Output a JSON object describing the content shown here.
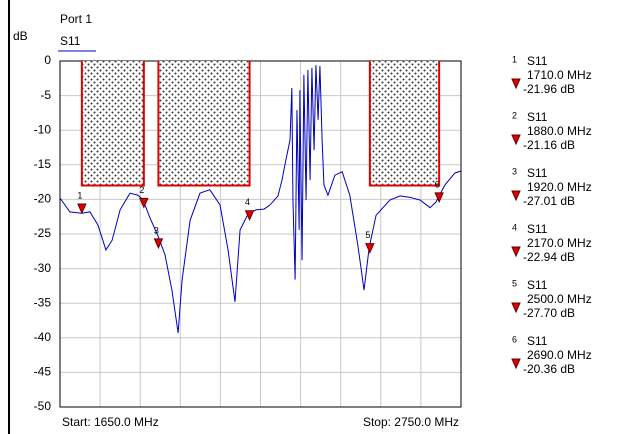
{
  "chart_data": {
    "type": "line",
    "title": "Port 1",
    "ylabel": "dB",
    "start_label": "Start: 1650.0 MHz",
    "stop_label": "Stop: 2750.0 MHz",
    "xlim": [
      1650,
      2750
    ],
    "ylim": [
      -50,
      0
    ],
    "yticks": [
      0,
      -5,
      -10,
      -15,
      -20,
      -25,
      -30,
      -35,
      -40,
      -45,
      -50
    ],
    "xticks": [
      1650,
      1760,
      1870,
      1980,
      2090,
      2200,
      2310,
      2420,
      2530,
      2640,
      2750
    ],
    "grid": true,
    "series": [
      {
        "name": "S11",
        "color": "#0000c0",
        "x": [
          1650,
          1677,
          1710,
          1732,
          1754,
          1776,
          1793,
          1815,
          1842,
          1864,
          1878,
          1897,
          1919,
          1938,
          1957,
          1974,
          1985,
          2007,
          2034,
          2061,
          2089,
          2111,
          2130,
          2144,
          2166,
          2188,
          2210,
          2226,
          2248,
          2259,
          2267,
          2281,
          2286,
          2289,
          2295,
          2300,
          2306,
          2308,
          2314,
          2319,
          2325,
          2330,
          2336,
          2341,
          2347,
          2352,
          2358,
          2363,
          2369,
          2374,
          2385,
          2404,
          2424,
          2445,
          2467,
          2484,
          2498,
          2517,
          2555,
          2583,
          2610,
          2638,
          2665,
          2681,
          2706,
          2733,
          2750
        ],
        "values": [
          -19.8,
          -21.8,
          -22.0,
          -21.8,
          -23.7,
          -27.3,
          -25.9,
          -21.5,
          -19.1,
          -19.4,
          -20.1,
          -22.7,
          -25.3,
          -28.0,
          -33.1,
          -39.3,
          -31.6,
          -23.0,
          -19.1,
          -18.6,
          -20.8,
          -27.3,
          -34.8,
          -24.4,
          -22.1,
          -21.5,
          -21.4,
          -20.8,
          -19.5,
          -17.2,
          -15.0,
          -11.4,
          -3.9,
          -20.1,
          -31.6,
          -7.1,
          -24.4,
          -4.2,
          -28.8,
          -2.0,
          -20.1,
          -1.3,
          -17.2,
          -1.0,
          -12.9,
          -0.6,
          -8.5,
          -0.7,
          -11.4,
          -17.9,
          -19.4,
          -16.5,
          -16.0,
          -19.4,
          -26.6,
          -33.1,
          -27.0,
          -22.3,
          -20.1,
          -19.5,
          -19.7,
          -20.1,
          -21.2,
          -20.4,
          -17.9,
          -16.2,
          -15.9
        ]
      }
    ],
    "limit_boxes": [
      {
        "x": [
          1710,
          1880
        ],
        "y": -18
      },
      {
        "x": [
          1920,
          2170
        ],
        "y": -18
      },
      {
        "x": [
          2500,
          2690
        ],
        "y": -18
      }
    ],
    "markers": {
      "trace": "S11",
      "numbers": [
        "1",
        "2",
        "3",
        "4",
        "5",
        "6"
      ],
      "x": [
        1710,
        1880,
        1920,
        2170,
        2500,
        2690
      ],
      "x_labels": [
        "1710.0 MHz",
        "1880.0 MHz",
        "1920.0 MHz",
        "2170.0 MHz",
        "2500.0 MHz",
        "2690.0 MHz"
      ],
      "values": [
        -21.96,
        -21.16,
        -27.01,
        -22.94,
        -27.7,
        -20.36
      ],
      "value_labels": [
        "-21.96 dB",
        "-21.16 dB",
        "-27.01 dB",
        "-22.94 dB",
        "-27.70 dB",
        "-20.36 dB"
      ]
    }
  }
}
